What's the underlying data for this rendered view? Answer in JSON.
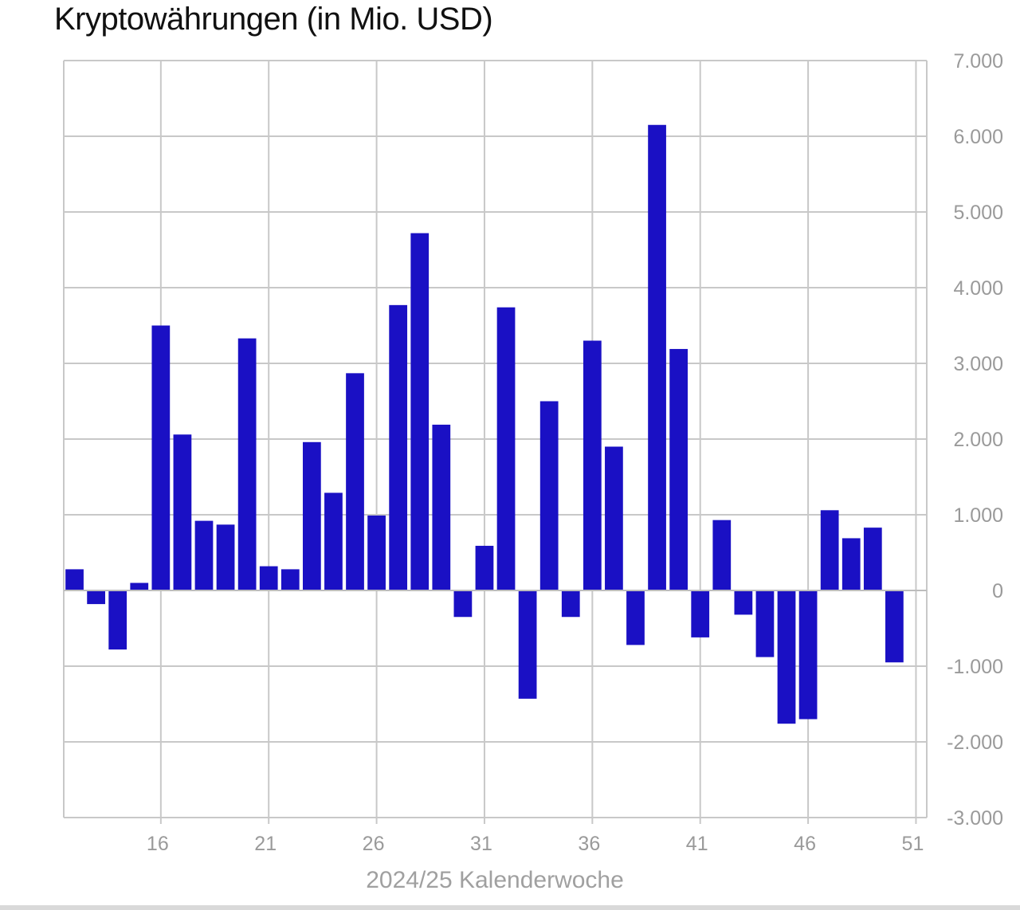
{
  "chart_data": {
    "type": "bar",
    "title": "Kryptowährungen (in Mio. USD)",
    "xlabel": "2024/25 Kalenderwoche",
    "ylabel": "",
    "ylim": [
      -3000,
      7000
    ],
    "y_ticks": [
      7000,
      6000,
      5000,
      4000,
      3000,
      2000,
      1000,
      0,
      -1000,
      -2000,
      -3000
    ],
    "y_tick_labels": [
      "7.000",
      "6.000",
      "5.000",
      "4.000",
      "3.000",
      "2.000",
      "1.000",
      "0",
      "-1.000",
      "-2.000",
      "-3.000"
    ],
    "x_tick_labels": [
      "16",
      "21",
      "26",
      "31",
      "36",
      "41",
      "46",
      "51"
    ],
    "grid": true,
    "bar_color": "#1a10c4",
    "categories": [
      12,
      13,
      14,
      15,
      16,
      17,
      18,
      19,
      20,
      21,
      22,
      23,
      24,
      25,
      26,
      27,
      28,
      29,
      30,
      31,
      32,
      33,
      34,
      35,
      36,
      37,
      38,
      39,
      40,
      41,
      42,
      43,
      44,
      45,
      46,
      47,
      48,
      49,
      50,
      51
    ],
    "values": [
      280,
      -180,
      -780,
      100,
      3500,
      2060,
      920,
      870,
      3330,
      320,
      280,
      1960,
      1290,
      2870,
      990,
      3770,
      4720,
      2190,
      -350,
      590,
      3740,
      -1430,
      2500,
      -350,
      3300,
      1900,
      -720,
      6150,
      3190,
      -620,
      930,
      -320,
      -880,
      -1760,
      -1700,
      1060,
      690,
      830,
      -950,
      0
    ]
  }
}
